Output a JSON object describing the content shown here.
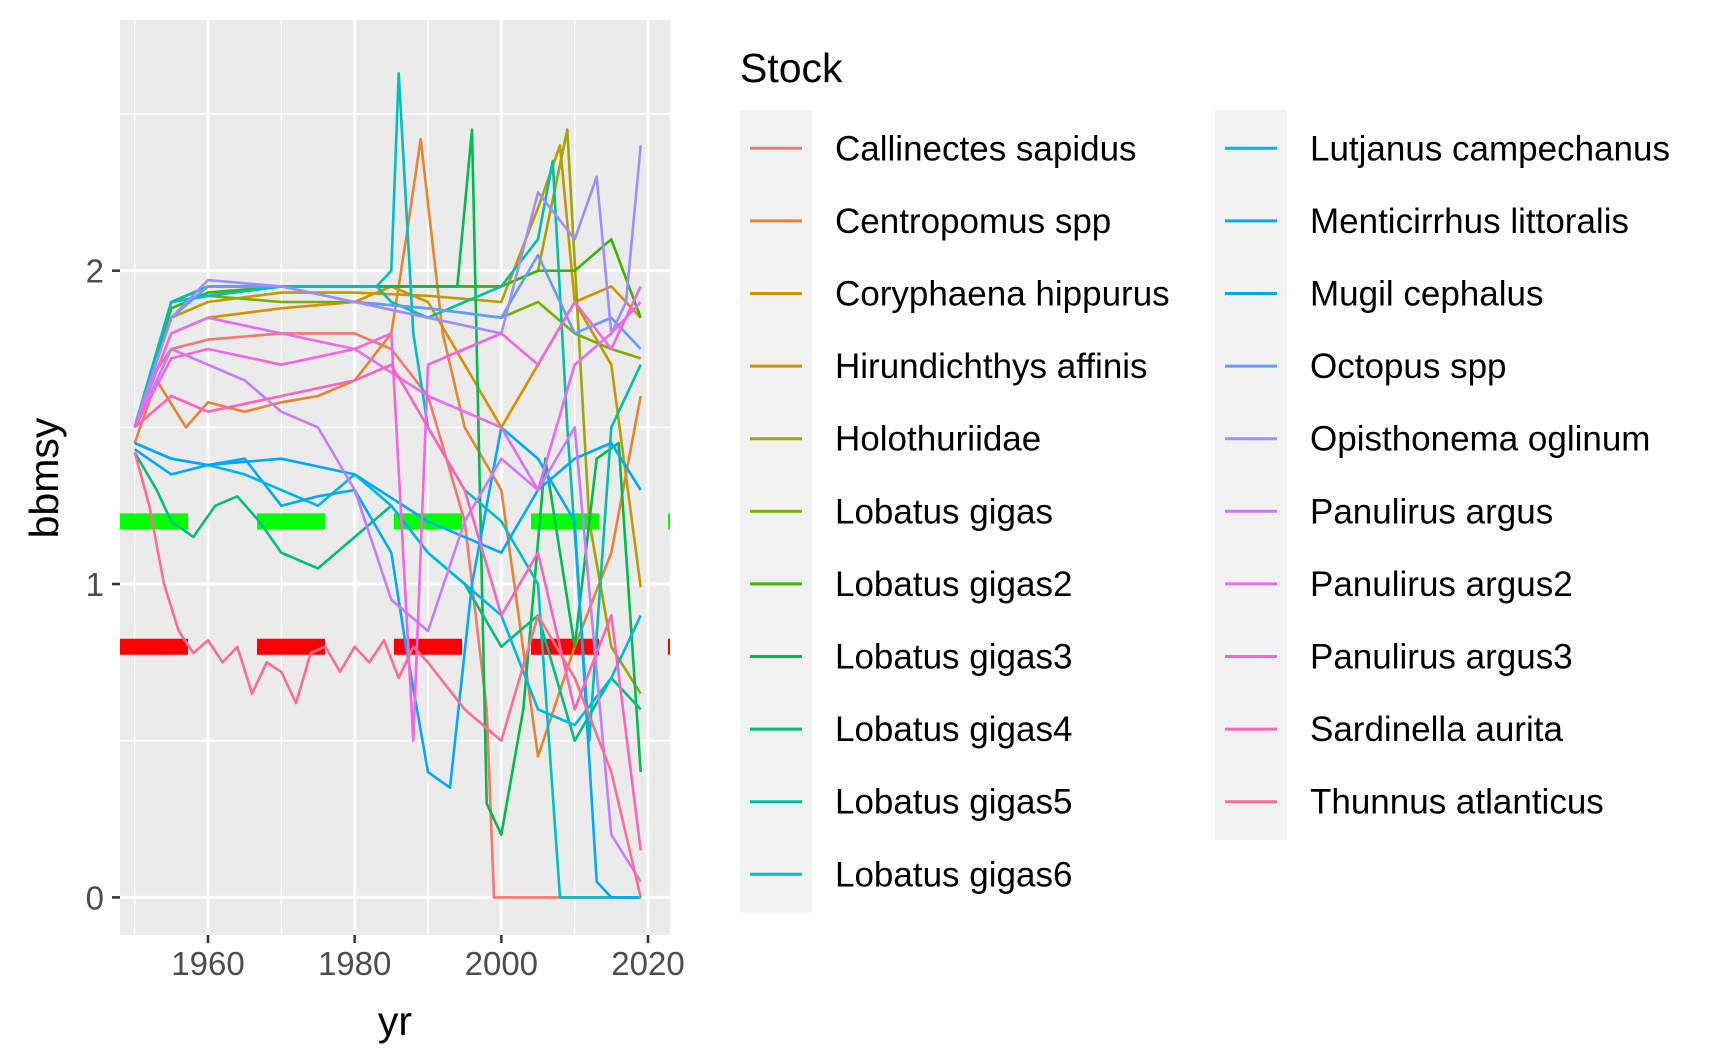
{
  "chart_data": {
    "type": "line",
    "xlabel": "yr",
    "ylabel": "bbmsy",
    "xlim": [
      1948,
      2023
    ],
    "ylim": [
      -0.12,
      2.8
    ],
    "x_ticks": [
      1960,
      1980,
      2000,
      2020
    ],
    "x_tick_labels": [
      "1960",
      "1980",
      "2000",
      "2020"
    ],
    "y_ticks": [
      0,
      1,
      2
    ],
    "y_tick_labels": [
      "0",
      "1",
      "2"
    ],
    "grid": true,
    "background": "#ebebeb",
    "legend": {
      "title": "Stock",
      "position": "right",
      "columns": 2
    },
    "reference_lines": [
      {
        "y": 1.2,
        "color": "#00ff00",
        "style": "dashed"
      },
      {
        "y": 0.8,
        "color": "#ff0000",
        "style": "dashed"
      }
    ],
    "series": [
      {
        "name": "Callinectes sapidus",
        "color": "#F8766D",
        "x": [
          1950,
          1952,
          1955,
          1960,
          1970,
          1980,
          1985,
          1990,
          1995,
          1998,
          1999,
          2005,
          2010,
          2015,
          2019
        ],
        "y": [
          1.5,
          1.65,
          1.75,
          1.78,
          1.8,
          1.8,
          1.75,
          1.6,
          1.2,
          0.6,
          0.0,
          0.0,
          0.0,
          0.0,
          0.0
        ]
      },
      {
        "name": "Centropomus spp",
        "color": "#EA8331",
        "x": [
          1950,
          1953,
          1957,
          1960,
          1965,
          1970,
          1975,
          1980,
          1985,
          1987,
          1989,
          1992,
          1995,
          2000,
          2005,
          2010,
          2015,
          2019
        ],
        "y": [
          1.45,
          1.65,
          1.5,
          1.58,
          1.55,
          1.58,
          1.6,
          1.65,
          1.8,
          2.1,
          2.42,
          1.8,
          1.5,
          1.3,
          0.45,
          0.8,
          1.1,
          1.6
        ]
      },
      {
        "name": "Coryphaena hippurus",
        "color": "#D89000",
        "x": [
          1950,
          1955,
          1960,
          1970,
          1980,
          1985,
          1990,
          1995,
          2000,
          2005,
          2010,
          2015,
          2019
        ],
        "y": [
          1.5,
          1.8,
          1.85,
          1.88,
          1.9,
          1.95,
          1.9,
          1.7,
          1.5,
          1.7,
          1.9,
          1.95,
          1.85
        ]
      },
      {
        "name": "Hirundichthys affinis",
        "color": "#C09B00",
        "x": [
          1950,
          1955,
          1960,
          1970,
          1980,
          1990,
          2000,
          2005,
          2008,
          2010,
          2015,
          2019
        ],
        "y": [
          1.5,
          1.85,
          1.9,
          1.93,
          1.93,
          1.92,
          1.9,
          2.2,
          2.4,
          1.9,
          1.7,
          0.99
        ]
      },
      {
        "name": "Holothuriidae",
        "color": "#A3A500",
        "x": [
          1950,
          1955,
          1960,
          1970,
          1980,
          1990,
          2000,
          2005,
          2009,
          2012,
          2015,
          2019
        ],
        "y": [
          1.5,
          1.9,
          1.95,
          1.95,
          1.95,
          1.95,
          1.95,
          2.0,
          2.45,
          1.2,
          0.8,
          0.65
        ]
      },
      {
        "name": "Lobatus gigas",
        "color": "#7CAE00",
        "x": [
          1950,
          1955,
          1960,
          1970,
          1980,
          1990,
          2000,
          2005,
          2010,
          2015,
          2019
        ],
        "y": [
          1.5,
          1.9,
          1.92,
          1.9,
          1.9,
          1.88,
          1.85,
          1.9,
          1.8,
          1.75,
          1.72
        ]
      },
      {
        "name": "Lobatus gigas2",
        "color": "#39B600",
        "x": [
          1950,
          1955,
          1960,
          1970,
          1980,
          1990,
          2000,
          2005,
          2010,
          2015,
          2019
        ],
        "y": [
          1.5,
          1.88,
          1.93,
          1.95,
          1.95,
          1.95,
          1.95,
          2.0,
          2.0,
          2.1,
          1.85
        ]
      },
      {
        "name": "Lobatus gigas3",
        "color": "#00BB4E",
        "x": [
          1950,
          1955,
          1960,
          1970,
          1980,
          1990,
          1994,
          1996,
          1998,
          2000,
          2003,
          2006,
          2010,
          2013,
          2016,
          2019
        ],
        "y": [
          1.5,
          1.9,
          1.92,
          1.95,
          1.95,
          1.95,
          1.95,
          2.45,
          0.3,
          0.2,
          0.6,
          1.4,
          0.8,
          1.4,
          1.45,
          0.4
        ]
      },
      {
        "name": "Lobatus gigas4",
        "color": "#00BF7D",
        "x": [
          1950,
          1953,
          1955,
          1958,
          1961,
          1964,
          1967,
          1970,
          1975,
          1980,
          1985,
          1990,
          1995,
          2000,
          2005,
          2010,
          2015,
          2019
        ],
        "y": [
          1.42,
          1.3,
          1.2,
          1.15,
          1.25,
          1.28,
          1.2,
          1.1,
          1.05,
          1.15,
          1.25,
          1.1,
          1.0,
          0.8,
          0.9,
          0.5,
          0.7,
          0.6
        ]
      },
      {
        "name": "Lobatus gigas5",
        "color": "#00C1A3",
        "x": [
          1950,
          1955,
          1960,
          1970,
          1980,
          1983,
          1985,
          1990,
          1995,
          2000,
          2005,
          2007,
          2009,
          2012,
          2015,
          2019
        ],
        "y": [
          1.5,
          1.9,
          1.95,
          1.95,
          1.95,
          1.95,
          1.9,
          1.85,
          1.9,
          1.95,
          2.1,
          2.35,
          1.5,
          0.5,
          1.5,
          1.7
        ]
      },
      {
        "name": "Lobatus gigas6",
        "color": "#00BFC4",
        "x": [
          1950,
          1955,
          1960,
          1970,
          1980,
          1983,
          1985,
          1986,
          1988,
          1990,
          1995,
          2000,
          2005,
          2008,
          2010,
          2015,
          2019
        ],
        "y": [
          1.5,
          1.9,
          1.92,
          1.95,
          1.95,
          1.95,
          2.0,
          2.63,
          1.8,
          1.5,
          1.3,
          1.2,
          1.0,
          0.0,
          0.0,
          0.0,
          0.0
        ]
      },
      {
        "name": "Lutjanus campechanus",
        "color": "#00B8E7",
        "x": [
          1950,
          1955,
          1960,
          1965,
          1970,
          1975,
          1980,
          1985,
          1990,
          1995,
          2000,
          2005,
          2010,
          2015,
          2019
        ],
        "y": [
          1.45,
          1.4,
          1.38,
          1.35,
          1.3,
          1.25,
          1.35,
          1.25,
          1.1,
          1.0,
          0.9,
          0.6,
          0.55,
          0.7,
          0.9
        ]
      },
      {
        "name": "Menticirrhus littoralis",
        "color": "#00A9FF",
        "x": [
          1950,
          1955,
          1960,
          1965,
          1970,
          1975,
          1980,
          1985,
          1987,
          1990,
          1993,
          1996,
          2000,
          2005,
          2010,
          2013,
          2015,
          2019
        ],
        "y": [
          1.43,
          1.35,
          1.38,
          1.4,
          1.25,
          1.28,
          1.3,
          1.1,
          0.8,
          0.4,
          0.35,
          1.0,
          1.5,
          1.4,
          1.2,
          0.05,
          0.0,
          0.0
        ]
      },
      {
        "name": "Mugil cephalus",
        "color": "#00A9FF",
        "x": [
          1950,
          1955,
          1960,
          1970,
          1980,
          1990,
          2000,
          2005,
          2010,
          2015,
          2019
        ],
        "y": [
          1.45,
          1.4,
          1.38,
          1.4,
          1.35,
          1.2,
          1.1,
          1.3,
          1.4,
          1.45,
          1.3
        ]
      },
      {
        "name": "Octopus spp",
        "color": "#619CFF",
        "x": [
          1950,
          1955,
          1960,
          1970,
          1980,
          1990,
          2000,
          2005,
          2010,
          2015,
          2019
        ],
        "y": [
          1.5,
          1.85,
          1.95,
          1.95,
          1.9,
          1.88,
          1.85,
          2.05,
          1.8,
          1.85,
          1.75
        ]
      },
      {
        "name": "Opisthonema oglinum",
        "color": "#9F8CFF",
        "x": [
          1950,
          1955,
          1960,
          1970,
          1980,
          1990,
          2000,
          2005,
          2010,
          2013,
          2015,
          2017,
          2019
        ],
        "y": [
          1.5,
          1.85,
          1.97,
          1.95,
          1.9,
          1.85,
          1.8,
          2.25,
          2.1,
          2.3,
          1.8,
          1.9,
          2.4
        ]
      },
      {
        "name": "Panulirus argus",
        "color": "#C77CFF",
        "x": [
          1950,
          1955,
          1960,
          1965,
          1970,
          1975,
          1980,
          1985,
          1990,
          1995,
          2000,
          2005,
          2010,
          2015,
          2019
        ],
        "y": [
          1.5,
          1.75,
          1.7,
          1.65,
          1.55,
          1.5,
          1.3,
          0.95,
          0.85,
          1.2,
          1.4,
          1.3,
          1.5,
          0.2,
          0.05
        ]
      },
      {
        "name": "Panulirus argus2",
        "color": "#E76BF3",
        "x": [
          1950,
          1955,
          1960,
          1970,
          1980,
          1990,
          2000,
          2005,
          2010,
          2015,
          2019
        ],
        "y": [
          1.5,
          1.8,
          1.85,
          1.8,
          1.75,
          1.6,
          1.5,
          1.3,
          1.7,
          1.8,
          1.9
        ]
      },
      {
        "name": "Panulirus argus3",
        "color": "#F564E3",
        "x": [
          1950,
          1955,
          1960,
          1970,
          1980,
          1985,
          1988,
          1990,
          1995,
          2000,
          2005,
          2010,
          2015,
          2019
        ],
        "y": [
          1.5,
          1.72,
          1.75,
          1.7,
          1.75,
          1.8,
          0.5,
          1.7,
          1.75,
          1.8,
          1.7,
          1.9,
          1.75,
          1.95
        ]
      },
      {
        "name": "Sardinella aurita",
        "color": "#FF62BC",
        "x": [
          1950,
          1955,
          1960,
          1970,
          1980,
          1985,
          1990,
          1995,
          2000,
          2005,
          2010,
          2015,
          2019
        ],
        "y": [
          1.5,
          1.6,
          1.55,
          1.6,
          1.65,
          1.7,
          1.5,
          1.3,
          0.9,
          1.1,
          0.6,
          0.9,
          0.15
        ]
      },
      {
        "name": "Thunnus atlanticus",
        "color": "#FF6C91",
        "x": [
          1950,
          1952,
          1954,
          1956,
          1958,
          1960,
          1962,
          1964,
          1966,
          1968,
          1970,
          1972,
          1974,
          1976,
          1978,
          1980,
          1982,
          1984,
          1986,
          1988,
          1990,
          1995,
          2000,
          2005,
          2010,
          2015,
          2019
        ],
        "y": [
          1.42,
          1.25,
          1.0,
          0.85,
          0.78,
          0.82,
          0.75,
          0.8,
          0.65,
          0.75,
          0.72,
          0.62,
          0.78,
          0.8,
          0.72,
          0.8,
          0.75,
          0.82,
          0.7,
          0.8,
          0.75,
          0.6,
          0.5,
          0.9,
          0.7,
          0.4,
          0.0
        ]
      }
    ]
  }
}
